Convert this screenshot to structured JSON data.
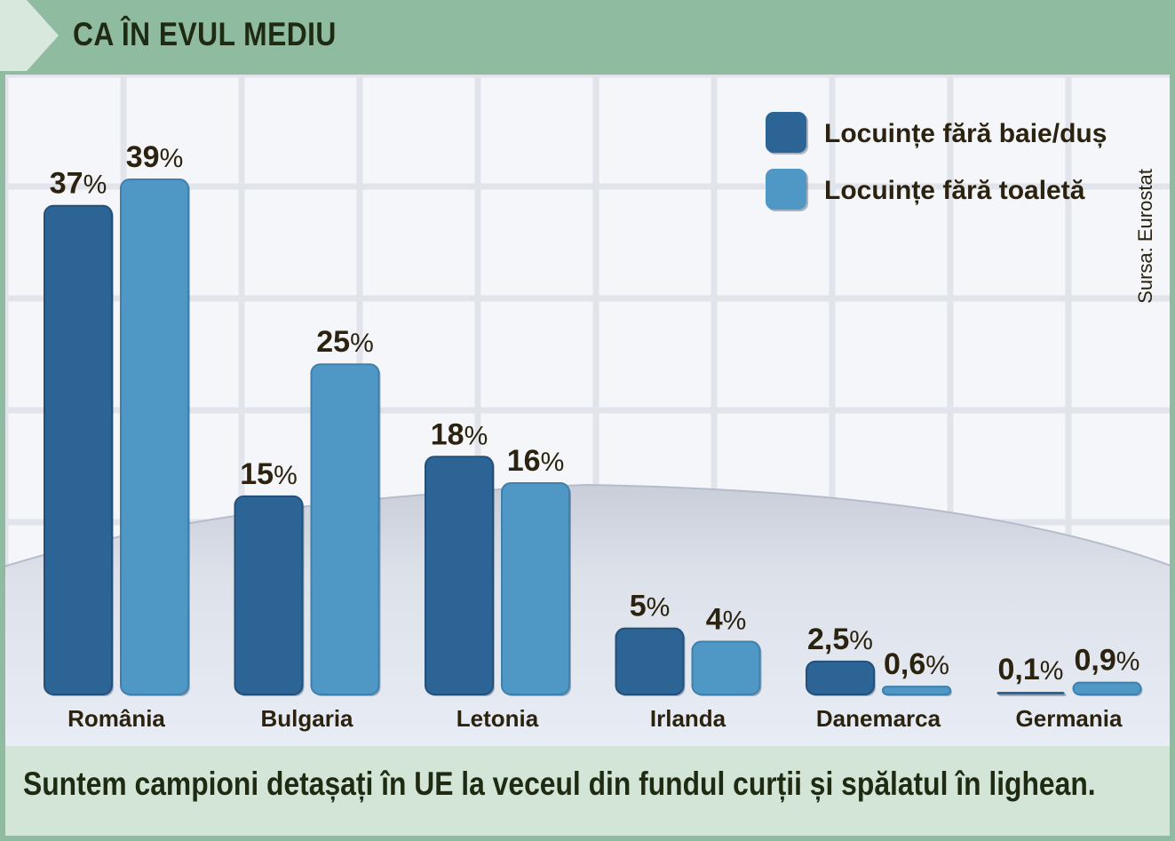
{
  "header": {
    "title": "CA ÎN EVUL MEDIU"
  },
  "source": "Sursa: Eurostat",
  "caption": "Suntem campioni detașați în UE la veceul din fundul curții și spălatul în lighean.",
  "colors": {
    "series1": "#2c6496",
    "series2": "#4f97c4",
    "thin_series2": "#5fb0e2",
    "header": "#8fbba0",
    "footer": "#d3e5d6"
  },
  "chart_data": {
    "type": "bar",
    "title": "CA ÎN EVUL MEDIU",
    "categories": [
      "România",
      "Bulgaria",
      "Letonia",
      "Irlanda",
      "Danemarca",
      "Germania"
    ],
    "series": [
      {
        "name": "Locuințe fără baie/duș",
        "values": [
          37,
          15,
          18,
          5,
          2.5,
          0.1
        ],
        "labels": [
          "37",
          "15",
          "18",
          "5",
          "2,5",
          "0,1"
        ]
      },
      {
        "name": "Locuințe fără toaletă",
        "values": [
          39,
          25,
          16,
          4,
          0.6,
          0.9
        ],
        "labels": [
          "39",
          "25",
          "16",
          "4",
          "0,6",
          "0,9"
        ]
      }
    ],
    "unit": "%",
    "ylim": [
      0,
      39
    ],
    "legend": "top-right",
    "grid": false
  }
}
